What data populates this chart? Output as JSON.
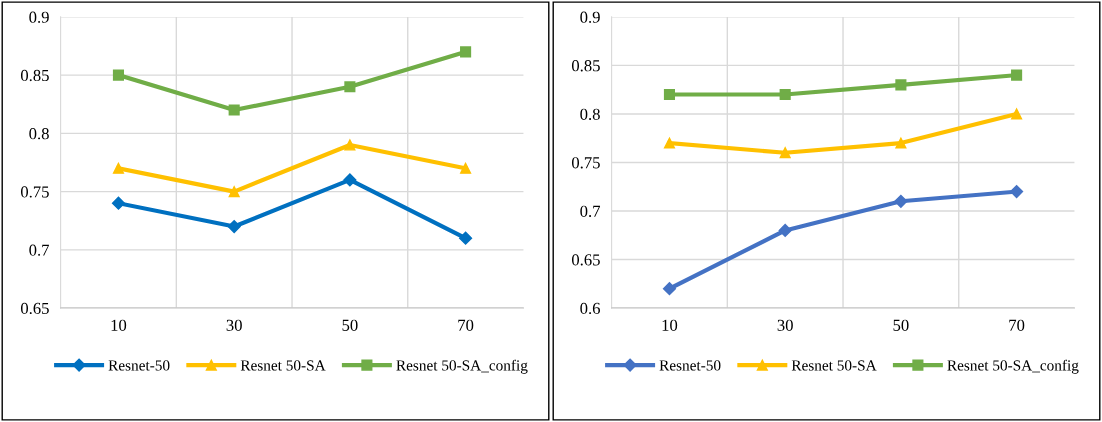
{
  "chart_data": [
    {
      "type": "line",
      "categories": [
        "10",
        "30",
        "50",
        "70"
      ],
      "ylim": [
        0.65,
        0.9
      ],
      "yticks": [
        0.65,
        0.7,
        0.75,
        0.8,
        0.85,
        0.9
      ],
      "grid": true,
      "legend": "bottom",
      "line_style": "solid",
      "series": [
        {
          "name": "Resnet-50",
          "color": "#0070c0",
          "marker": "diamond",
          "values": [
            0.74,
            0.72,
            0.76,
            0.71
          ]
        },
        {
          "name": "Resnet 50-SA",
          "color": "#ffc000",
          "marker": "triangle",
          "values": [
            0.77,
            0.75,
            0.79,
            0.77
          ]
        },
        {
          "name": "Resnet 50-SA_config",
          "color": "#70ad47",
          "marker": "square",
          "values": [
            0.85,
            0.82,
            0.84,
            0.87
          ]
        }
      ]
    },
    {
      "type": "line",
      "categories": [
        "10",
        "30",
        "50",
        "70"
      ],
      "ylim": [
        0.6,
        0.9
      ],
      "yticks": [
        0.6,
        0.65,
        0.7,
        0.75,
        0.8,
        0.85,
        0.9
      ],
      "grid": true,
      "legend": "bottom",
      "line_style": "solid",
      "series": [
        {
          "name": "Resnet-50",
          "color": "#4472c4",
          "marker": "diamond",
          "values": [
            0.62,
            0.68,
            0.71,
            0.72
          ]
        },
        {
          "name": "Resnet 50-SA",
          "color": "#ffc000",
          "marker": "triangle",
          "values": [
            0.77,
            0.76,
            0.77,
            0.8
          ]
        },
        {
          "name": "Resnet 50-SA_config",
          "color": "#70ad47",
          "marker": "square",
          "values": [
            0.82,
            0.82,
            0.83,
            0.84
          ]
        }
      ]
    }
  ]
}
